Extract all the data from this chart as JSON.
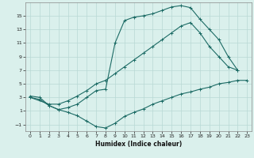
{
  "xlabel": "Humidex (Indice chaleur)",
  "bg_color": "#daf0ec",
  "grid_color": "#b8d8d4",
  "line_color": "#1c6b65",
  "xlim": [
    -0.5,
    23.5
  ],
  "ylim": [
    -2,
    17
  ],
  "xticks": [
    0,
    1,
    2,
    3,
    4,
    5,
    6,
    7,
    8,
    9,
    10,
    11,
    12,
    13,
    14,
    15,
    16,
    17,
    18,
    19,
    20,
    21,
    22,
    23
  ],
  "yticks": [
    -1,
    1,
    3,
    5,
    7,
    9,
    11,
    13,
    15
  ],
  "curve1_x": [
    0,
    1,
    2,
    3,
    4,
    5,
    6,
    7,
    8,
    9,
    10,
    11,
    12,
    13,
    14,
    15,
    16,
    17,
    18,
    19,
    20,
    21,
    22,
    23
  ],
  "curve1_y": [
    3.0,
    2.7,
    1.8,
    1.2,
    0.8,
    0.3,
    -0.5,
    -1.3,
    -1.5,
    -0.8,
    0.2,
    0.8,
    1.3,
    2.0,
    2.5,
    3.0,
    3.5,
    3.8,
    4.2,
    4.5,
    5.0,
    5.2,
    5.5,
    5.5
  ],
  "curve2_x": [
    0,
    2,
    3,
    4,
    5,
    6,
    7,
    8,
    9,
    10,
    11,
    12,
    13,
    14,
    15,
    16,
    17,
    18,
    19,
    20,
    21,
    22
  ],
  "curve2_y": [
    3.0,
    2.0,
    2.0,
    2.5,
    3.2,
    4.0,
    5.0,
    5.5,
    6.5,
    7.5,
    8.5,
    9.5,
    10.5,
    11.5,
    12.5,
    13.5,
    14.0,
    12.5,
    10.5,
    9.0,
    7.5,
    7.0
  ],
  "curve3_x": [
    0,
    1,
    2,
    3,
    4,
    5,
    6,
    7,
    8,
    9,
    10,
    11,
    12,
    13,
    14,
    15,
    16,
    17,
    18,
    19,
    20,
    21,
    22
  ],
  "curve3_y": [
    3.2,
    3.0,
    1.8,
    1.2,
    1.5,
    2.0,
    3.0,
    4.0,
    4.2,
    11.0,
    14.3,
    14.8,
    15.0,
    15.3,
    15.8,
    16.3,
    16.5,
    16.2,
    14.5,
    13.0,
    11.5,
    9.0,
    7.0
  ]
}
